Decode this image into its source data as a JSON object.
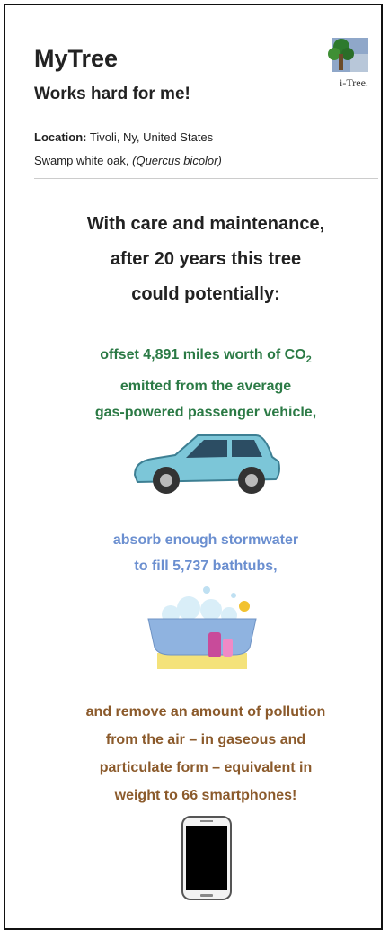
{
  "header": {
    "title": "MyTree",
    "subtitle": "Works hard for me!",
    "logo_text": "i-Tree."
  },
  "details": {
    "location_label": "Location:",
    "location": "Tivoli, Ny, United States",
    "species": "Swamp white oak,",
    "scientific_name": "(Quercus bicolor)"
  },
  "intro": {
    "lines": [
      "With care and maintenance,",
      "after 20 years this tree",
      "could potentially:"
    ]
  },
  "benefits": [
    {
      "lines": [
        "offset 4,891 miles worth of CO",
        "emitted from the average",
        "gas-powered passenger vehicle,"
      ],
      "subscript": "2"
    },
    {
      "lines": [
        "absorb enough stormwater",
        "to fill 5,737 bathtubs,"
      ]
    },
    {
      "lines": [
        "and remove an amount of pollution",
        "from the air – in gaseous and",
        "particulate form – equivalent in",
        "weight to 66 smartphones!"
      ]
    }
  ]
}
